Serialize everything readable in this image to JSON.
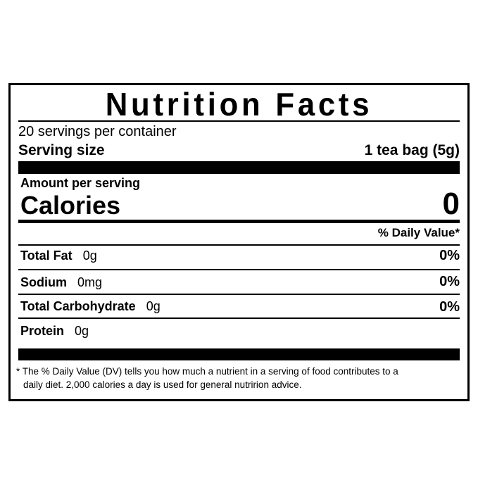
{
  "title": "Nutrition Facts",
  "servings_per_container": "20 servings per container",
  "serving_size": {
    "label": "Serving size",
    "value": "1 tea bag (5g)"
  },
  "amount_per_serving": "Amount per serving",
  "calories": {
    "label": "Calories",
    "value": "0"
  },
  "daily_value_header": "% Daily Value*",
  "nutrients": [
    {
      "label": "Total Fat",
      "amount": "0g",
      "dv": "0%"
    },
    {
      "label": "Sodium",
      "amount": "0mg",
      "dv": "0%"
    },
    {
      "label": "Total Carbohydrate",
      "amount": "0g",
      "dv": "0%"
    },
    {
      "label": "Protein",
      "amount": "0g"
    }
  ],
  "footnote": {
    "line1": "* The % Daily Value (DV) tells you how much a nutrient in a serving of food contributes to a",
    "line2": "daily diet. 2,000 calories a day is used for general nutririon advice."
  }
}
